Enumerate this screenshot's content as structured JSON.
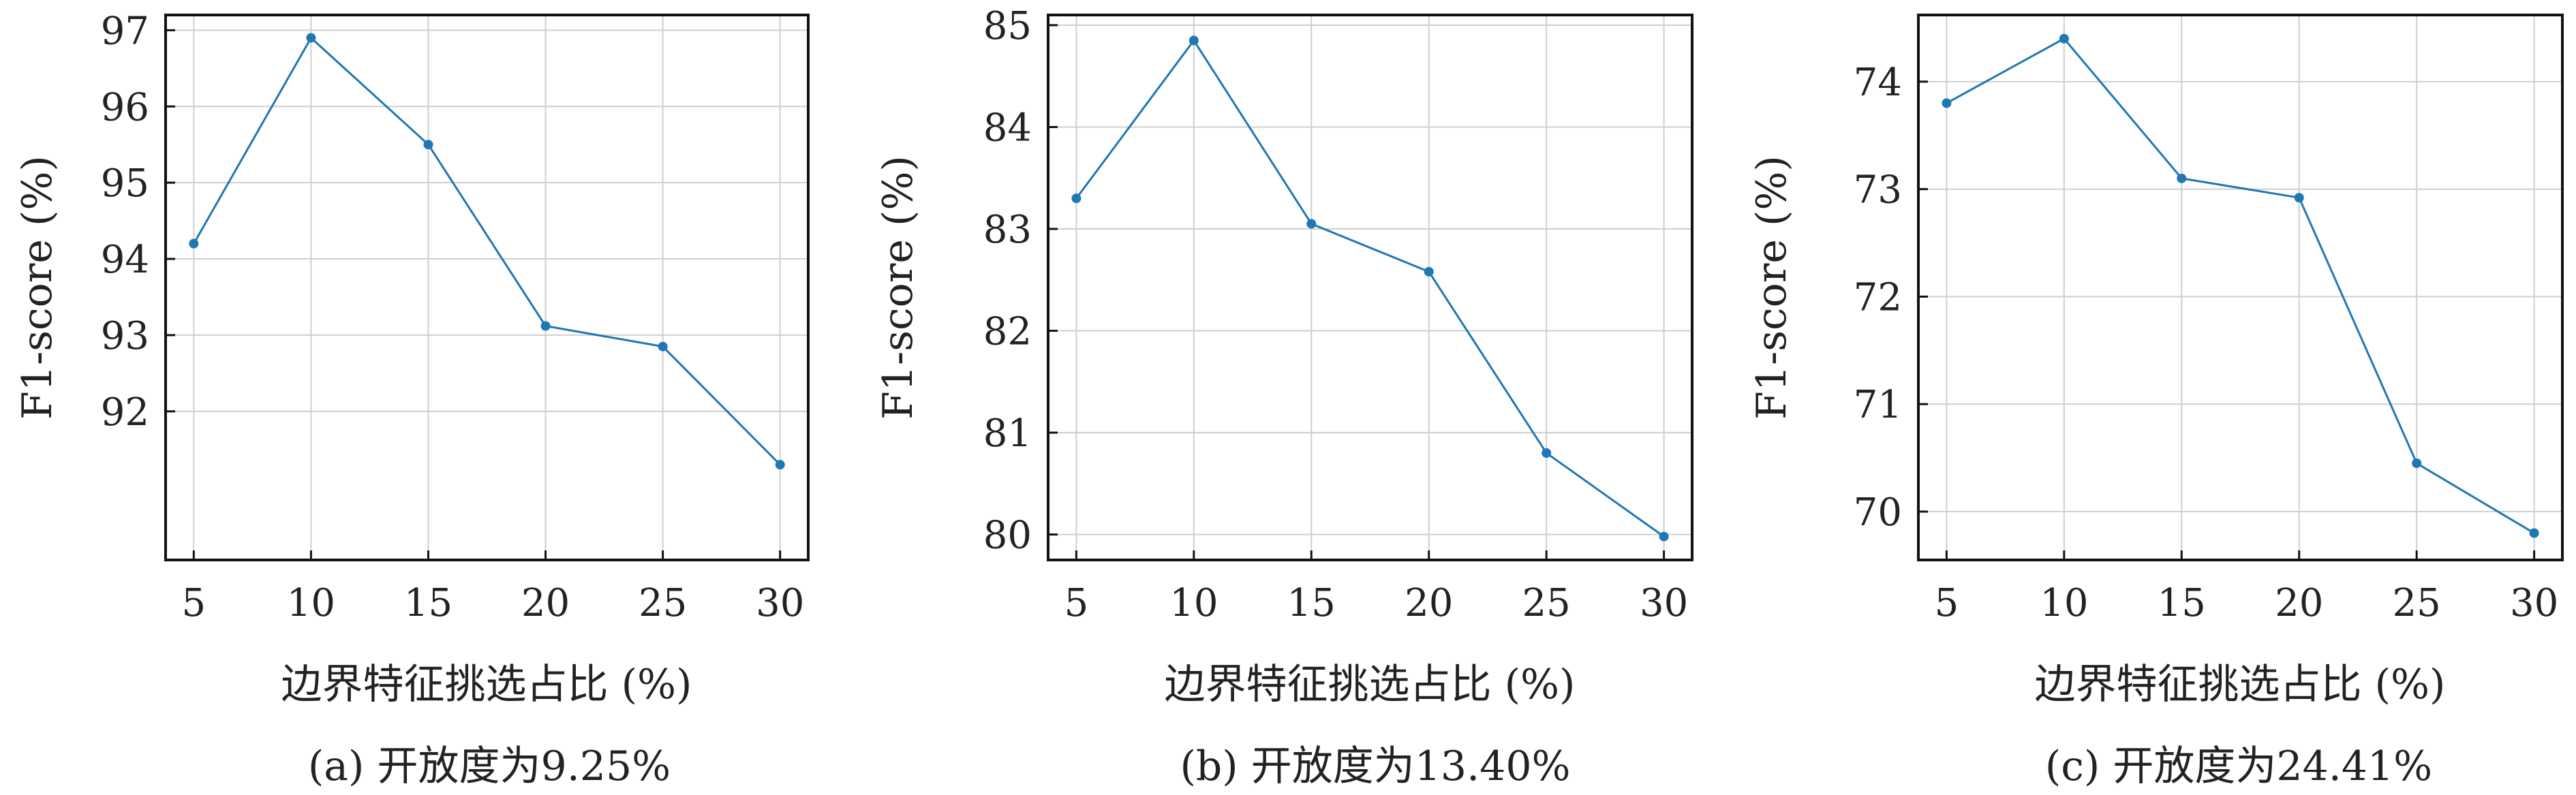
{
  "chart_data": [
    {
      "type": "line",
      "caption": "(a) 开放度为9.25%",
      "xlabel": "边界特征挑选占比 (%)",
      "ylabel": "F1-score (%)",
      "x": [
        5,
        10,
        15,
        20,
        25,
        30
      ],
      "series": [
        {
          "values": [
            94.2,
            96.9,
            95.5,
            93.12,
            92.85,
            91.3
          ]
        }
      ],
      "xticks": [
        5,
        10,
        15,
        20,
        25,
        30
      ],
      "yticks": [
        92,
        93,
        94,
        95,
        96,
        97
      ],
      "xlim": [
        3.8,
        31.2
      ],
      "ylim": [
        90.05,
        97.2
      ],
      "grid": true,
      "color": "#1f77b4"
    },
    {
      "type": "line",
      "caption": "(b) 开放度为13.40%",
      "xlabel": "边界特征挑选占比 (%)",
      "ylabel": "F1-score (%)",
      "x": [
        5,
        10,
        15,
        20,
        25,
        30
      ],
      "series": [
        {
          "values": [
            83.3,
            84.85,
            83.05,
            82.58,
            80.8,
            79.98
          ]
        }
      ],
      "xticks": [
        5,
        10,
        15,
        20,
        25,
        30
      ],
      "yticks": [
        80,
        81,
        82,
        83,
        84,
        85
      ],
      "xlim": [
        3.8,
        31.2
      ],
      "ylim": [
        79.75,
        85.1
      ],
      "grid": true,
      "color": "#1f77b4"
    },
    {
      "type": "line",
      "caption": "(c) 开放度为24.41%",
      "xlabel": "边界特征挑选占比 (%)",
      "ylabel": "F1-score (%)",
      "x": [
        5,
        10,
        15,
        20,
        25,
        30
      ],
      "series": [
        {
          "values": [
            73.8,
            74.4,
            73.1,
            72.92,
            70.45,
            69.8
          ]
        }
      ],
      "xticks": [
        5,
        10,
        15,
        20,
        25,
        30
      ],
      "yticks": [
        70,
        71,
        72,
        73,
        74
      ],
      "xlim": [
        3.8,
        31.2
      ],
      "ylim": [
        69.55,
        74.62
      ],
      "grid": true,
      "color": "#1f77b4"
    }
  ]
}
